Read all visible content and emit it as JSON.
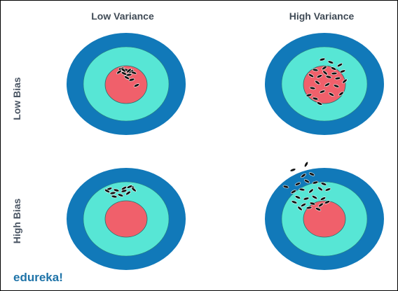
{
  "columns": [
    "Low Variance",
    "High Variance"
  ],
  "rows": [
    "Low Bias",
    "High Bias"
  ],
  "brand": "edureka!",
  "colors": {
    "outer_ring": "#1179b9",
    "middle_ring": "#57e6d5",
    "bullseye": "#f0606b",
    "shot": "#111111",
    "label": "#3f4a55",
    "brand": "#1e73a8"
  },
  "targets": [
    {
      "name": "low-bias-low-variance",
      "row": "Low Bias",
      "column": "Low Variance",
      "shot_pattern": "tight cluster inside bullseye"
    },
    {
      "name": "low-bias-high-variance",
      "row": "Low Bias",
      "column": "High Variance",
      "shot_pattern": "spread around bullseye"
    },
    {
      "name": "high-bias-low-variance",
      "row": "High Bias",
      "column": "Low Variance",
      "shot_pattern": "tight cluster away from bullseye"
    },
    {
      "name": "high-bias-high-variance",
      "row": "High Bias",
      "column": "High Variance",
      "shot_pattern": "spread away from bullseye"
    }
  ]
}
